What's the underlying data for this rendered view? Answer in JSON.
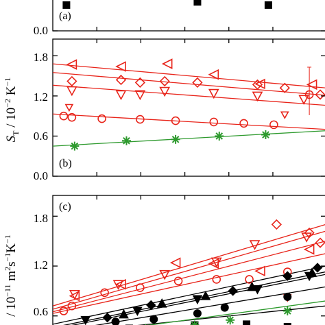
{
  "chart_data": [
    {
      "panel": "(a)",
      "type": "scatter",
      "ylim": [
        0.0,
        0.3
      ],
      "yticks": [
        "0.0"
      ],
      "series": [
        {
          "color": "#000000",
          "marker": "square",
          "points": [
            [
              0.05,
              0.24
            ],
            [
              0.53,
              0.27
            ],
            [
              0.79,
              0.24
            ]
          ]
        }
      ]
    },
    {
      "panel": "(b)",
      "type": "scatter",
      "ylabel": {
        "main": "S",
        "sub": "T",
        "rest": " / 10",
        "sup": "−2",
        "unit": " K",
        "unitsup": "−1"
      },
      "ylim": [
        0.0,
        2.05
      ],
      "yticks": [
        "0.0",
        "0.6",
        "1.2",
        "1.8"
      ],
      "series": [
        {
          "color": "#e8241a",
          "marker": "triangle-left",
          "points": [
            [
              0.07,
              1.67
            ],
            [
              0.25,
              1.64
            ],
            [
              0.42,
              1.68
            ],
            [
              0.59,
              1.52
            ],
            [
              0.76,
              1.38
            ],
            [
              0.95,
              1.37
            ]
          ],
          "fit": [
            [
              0.0,
              1.68
            ],
            [
              1.0,
              1.32
            ]
          ]
        },
        {
          "color": "#e8241a",
          "marker": "diamond",
          "points": [
            [
              0.07,
              1.42
            ],
            [
              0.25,
              1.44
            ],
            [
              0.32,
              1.4
            ],
            [
              0.41,
              1.42
            ],
            [
              0.53,
              1.4
            ],
            [
              0.75,
              1.37
            ],
            [
              0.85,
              1.32
            ],
            [
              0.98,
              1.22
            ]
          ],
          "fit": [
            [
              0.0,
              1.55
            ],
            [
              1.0,
              1.21
            ]
          ]
        },
        {
          "color": "#e8241a",
          "marker": "triangle-down",
          "points": [
            [
              0.07,
              1.28
            ],
            [
              0.25,
              1.22
            ],
            [
              0.32,
              1.22
            ],
            [
              0.41,
              1.27
            ],
            [
              0.59,
              1.24
            ],
            [
              0.75,
              1.2
            ],
            [
              0.92,
              1.15
            ]
          ],
          "fit": [
            [
              0.0,
              1.36
            ],
            [
              1.0,
              1.06
            ]
          ]
        },
        {
          "color": "#e8241a",
          "marker": "triangle-down-small",
          "points": [
            [
              0.06,
              1.03
            ],
            [
              0.85,
              0.92
            ]
          ]
        },
        {
          "color": "#e8241a",
          "marker": "circle",
          "points": [
            [
              0.04,
              0.9
            ],
            [
              0.07,
              0.88
            ],
            [
              0.18,
              0.86
            ],
            [
              0.32,
              0.85
            ],
            [
              0.45,
              0.83
            ],
            [
              0.59,
              0.81
            ],
            [
              0.7,
              0.79
            ],
            [
              0.81,
              0.77
            ]
          ],
          "fit": [
            [
              0.0,
              0.93
            ],
            [
              1.0,
              0.7
            ]
          ]
        },
        {
          "color": "#e8241a",
          "marker": "circle-errorbar",
          "points": [
            [
              0.94,
              1.22
            ]
          ]
        },
        {
          "color": "#2e9a2e",
          "marker": "asterisk",
          "points": [
            [
              0.08,
              0.45
            ],
            [
              0.27,
              0.53
            ],
            [
              0.45,
              0.55
            ],
            [
              0.61,
              0.6
            ],
            [
              0.78,
              0.62
            ]
          ],
          "fit": [
            [
              0.0,
              0.45
            ],
            [
              1.0,
              0.68
            ]
          ]
        }
      ]
    },
    {
      "panel": "(c)",
      "type": "scatter",
      "ylabel": {
        "main": "/ 10",
        "sup": "−11",
        "unit": " m",
        "unitsup": "2",
        "rest2": "s",
        "rest2sup": "−1",
        "rest3": "K",
        "rest3sup": "−1"
      },
      "ylim": [
        0.4,
        2.05
      ],
      "yticks": [
        "0.6",
        "1.2",
        "1.8"
      ],
      "series": [
        {
          "color": "#e8241a",
          "marker": "diamond",
          "points": [
            [
              0.82,
              1.7
            ],
            [
              0.94,
              1.6
            ],
            [
              0.98,
              1.48
            ]
          ],
          "fit": [
            [
              0.0,
              0.72
            ],
            [
              1.0,
              1.7
            ]
          ]
        },
        {
          "color": "#e8241a",
          "marker": "triangle-down",
          "points": [
            [
              0.08,
              0.86
            ],
            [
              0.24,
              0.98
            ],
            [
              0.41,
              1.1
            ],
            [
              0.6,
              1.25
            ],
            [
              0.74,
              1.46
            ],
            [
              0.93,
              1.55
            ]
          ],
          "fit": [
            [
              0.0,
              0.68
            ],
            [
              1.0,
              1.62
            ]
          ]
        },
        {
          "color": "#e8241a",
          "marker": "triangle-left",
          "points": [
            [
              0.08,
              0.84
            ],
            [
              0.25,
              0.98
            ],
            [
              0.45,
              1.24
            ],
            [
              0.59,
              1.23
            ],
            [
              0.76,
              1.14
            ],
            [
              0.94,
              1.4
            ]
          ],
          "fit": [
            [
              0.0,
              0.65
            ],
            [
              1.0,
              1.5
            ]
          ]
        },
        {
          "color": "#e8241a",
          "marker": "circle",
          "points": [
            [
              0.04,
              0.66
            ],
            [
              0.07,
              0.72
            ],
            [
              0.19,
              0.88
            ],
            [
              0.32,
              0.94
            ],
            [
              0.46,
              1.02
            ],
            [
              0.6,
              1.04
            ],
            [
              0.72,
              1.04
            ],
            [
              0.86,
              1.13
            ]
          ],
          "fit": [
            [
              0.0,
              0.63
            ],
            [
              1.0,
              1.35
            ]
          ]
        },
        {
          "color": "#e8241a",
          "marker": "triangle-down-small",
          "points": [
            [
              0.86,
              0.82
            ]
          ]
        },
        {
          "color": "#000000",
          "marker": "diamond-filled",
          "points": [
            [
              0.2,
              0.58
            ],
            [
              0.36,
              0.73
            ],
            [
              0.66,
              0.9
            ],
            [
              0.86,
              1.08
            ],
            [
              0.97,
              1.18
            ]
          ],
          "fit": [
            [
              0.0,
              0.5
            ],
            [
              1.0,
              1.2
            ]
          ]
        },
        {
          "color": "#000000",
          "marker": "triangle-filled",
          "points": [
            [
              0.26,
              0.62
            ],
            [
              0.4,
              0.75
            ],
            [
              0.56,
              0.84
            ],
            [
              0.73,
              0.95
            ],
            [
              0.95,
              1.12
            ]
          ],
          "fit": [
            [
              0.0,
              0.46
            ],
            [
              1.0,
              1.13
            ]
          ]
        },
        {
          "color": "#000000",
          "marker": "triangle-down-filled",
          "points": [
            [
              0.12,
              0.55
            ],
            [
              0.31,
              0.66
            ],
            [
              0.53,
              0.8
            ],
            [
              0.75,
              0.92
            ],
            [
              0.94,
              1.08
            ]
          ],
          "fit": [
            [
              0.0,
              0.44
            ],
            [
              1.0,
              1.1
            ]
          ]
        },
        {
          "color": "#000000",
          "marker": "circle-filled",
          "points": [
            [
              0.06,
              0.43
            ],
            [
              0.23,
              0.53
            ],
            [
              0.37,
              0.56
            ],
            [
              0.53,
              0.63
            ],
            [
              0.63,
              0.7
            ],
            [
              0.86,
              0.83
            ]
          ],
          "fit": [
            [
              0.0,
              0.4
            ],
            [
              1.0,
              0.95
            ]
          ]
        },
        {
          "color": "#000000",
          "marker": "square-filled",
          "points": [
            [
              0.06,
              0.4
            ],
            [
              0.28,
              0.45
            ],
            [
              0.52,
              0.49
            ],
            [
              0.71,
              0.5
            ],
            [
              0.86,
              0.47
            ]
          ],
          "fit": [
            [
              0.0,
              0.38
            ],
            [
              1.0,
              0.72
            ]
          ]
        },
        {
          "color": "#2e9a2e",
          "marker": "asterisk",
          "points": [
            [
              0.12,
              0.43
            ],
            [
              0.34,
              0.45
            ],
            [
              0.52,
              0.49
            ],
            [
              0.65,
              0.55
            ],
            [
              0.86,
              0.66
            ]
          ],
          "fit": [
            [
              0.0,
              0.33
            ],
            [
              1.0,
              0.78
            ]
          ]
        }
      ]
    }
  ]
}
